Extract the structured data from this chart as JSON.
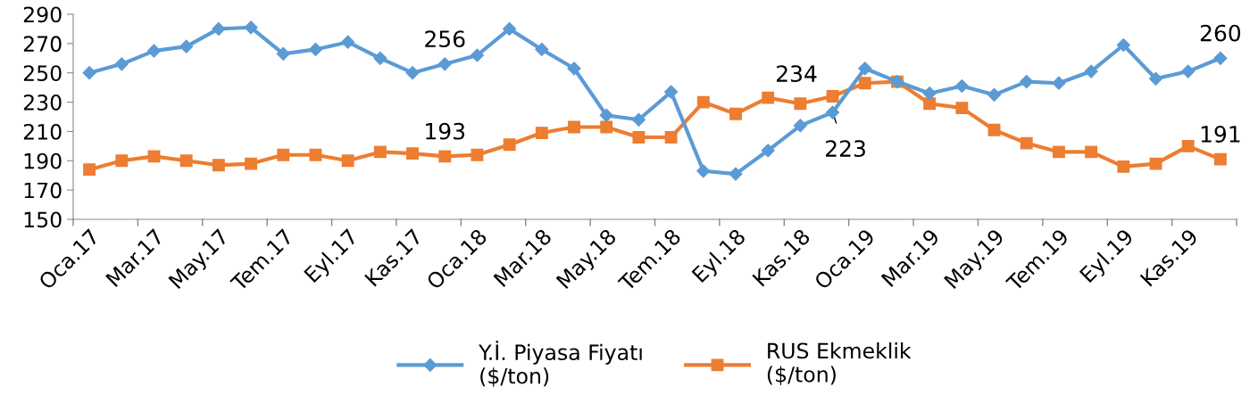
{
  "chart_data": {
    "type": "line",
    "categories": [
      "Oca.17",
      null,
      "Mar.17",
      null,
      "May.17",
      null,
      "Tem.17",
      null,
      "Eyl.17",
      null,
      "Kas.17",
      null,
      "Oca.18",
      null,
      "Mar.18",
      null,
      "May.18",
      null,
      "Tem.18",
      null,
      "Eyl.18",
      null,
      "Kas.18",
      null,
      "Oca.19",
      null,
      "Mar.19",
      null,
      "May.19",
      null,
      "Tem.19",
      null,
      "Eyl.19",
      null,
      "Kas.19",
      null
    ],
    "ylim": [
      150,
      290
    ],
    "yticks": [
      150,
      170,
      190,
      210,
      230,
      250,
      270,
      290
    ],
    "grid": false,
    "legend": "bottom",
    "series": [
      {
        "name": "Y.İ. Piyasa Fiyatı\n($/ton)",
        "color": "#5b9bd5",
        "marker": "diamond",
        "values": [
          250,
          256,
          265,
          268,
          280,
          281,
          263,
          266,
          271,
          260,
          250,
          256,
          262,
          280,
          266,
          253,
          221,
          218,
          237,
          183,
          181,
          197,
          214,
          223,
          253,
          244,
          236,
          241,
          235,
          244,
          243,
          251,
          269,
          246,
          251,
          260
        ],
        "value_labels": [
          null,
          null,
          null,
          null,
          null,
          null,
          null,
          null,
          null,
          null,
          null,
          "256",
          null,
          null,
          null,
          null,
          null,
          null,
          null,
          null,
          null,
          null,
          null,
          "223",
          null,
          null,
          null,
          null,
          null,
          null,
          null,
          null,
          null,
          null,
          null,
          "260"
        ]
      },
      {
        "name": "RUS Ekmeklik\n($/ton)",
        "color": "#ed7d31",
        "marker": "square",
        "values": [
          184,
          190,
          193,
          190,
          187,
          188,
          194,
          194,
          190,
          196,
          195,
          193,
          194,
          201,
          209,
          213,
          213,
          206,
          206,
          230,
          222,
          233,
          229,
          234,
          243,
          244,
          229,
          226,
          211,
          202,
          196,
          196,
          186,
          188,
          200,
          191
        ],
        "value_labels": [
          null,
          null,
          null,
          null,
          null,
          null,
          null,
          null,
          null,
          null,
          null,
          "193",
          null,
          null,
          null,
          null,
          null,
          null,
          null,
          null,
          null,
          null,
          null,
          "234",
          null,
          null,
          null,
          null,
          null,
          null,
          null,
          null,
          null,
          null,
          null,
          "191"
        ]
      }
    ]
  }
}
